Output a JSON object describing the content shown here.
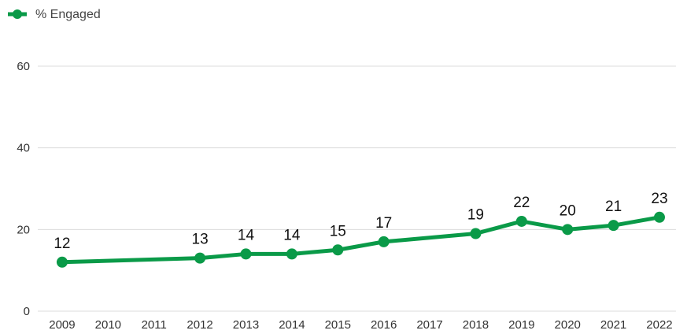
{
  "chart_data": {
    "type": "line",
    "x": [
      2009,
      2012,
      2013,
      2014,
      2015,
      2016,
      2018,
      2019,
      2020,
      2021,
      2022
    ],
    "series": [
      {
        "name": "% Engaged",
        "color": "#0a9a48",
        "values": [
          12,
          13,
          14,
          14,
          15,
          17,
          19,
          22,
          20,
          21,
          23
        ]
      }
    ],
    "xlim": [
      2008.47,
      2022.36
    ],
    "xticks": [
      2009,
      2010,
      2011,
      2012,
      2013,
      2014,
      2015,
      2016,
      2017,
      2018,
      2019,
      2020,
      2021,
      2022
    ],
    "ylim": [
      0,
      60
    ],
    "yticks": [
      0,
      20,
      40,
      60
    ],
    "grid": true,
    "legend": "top-left"
  }
}
